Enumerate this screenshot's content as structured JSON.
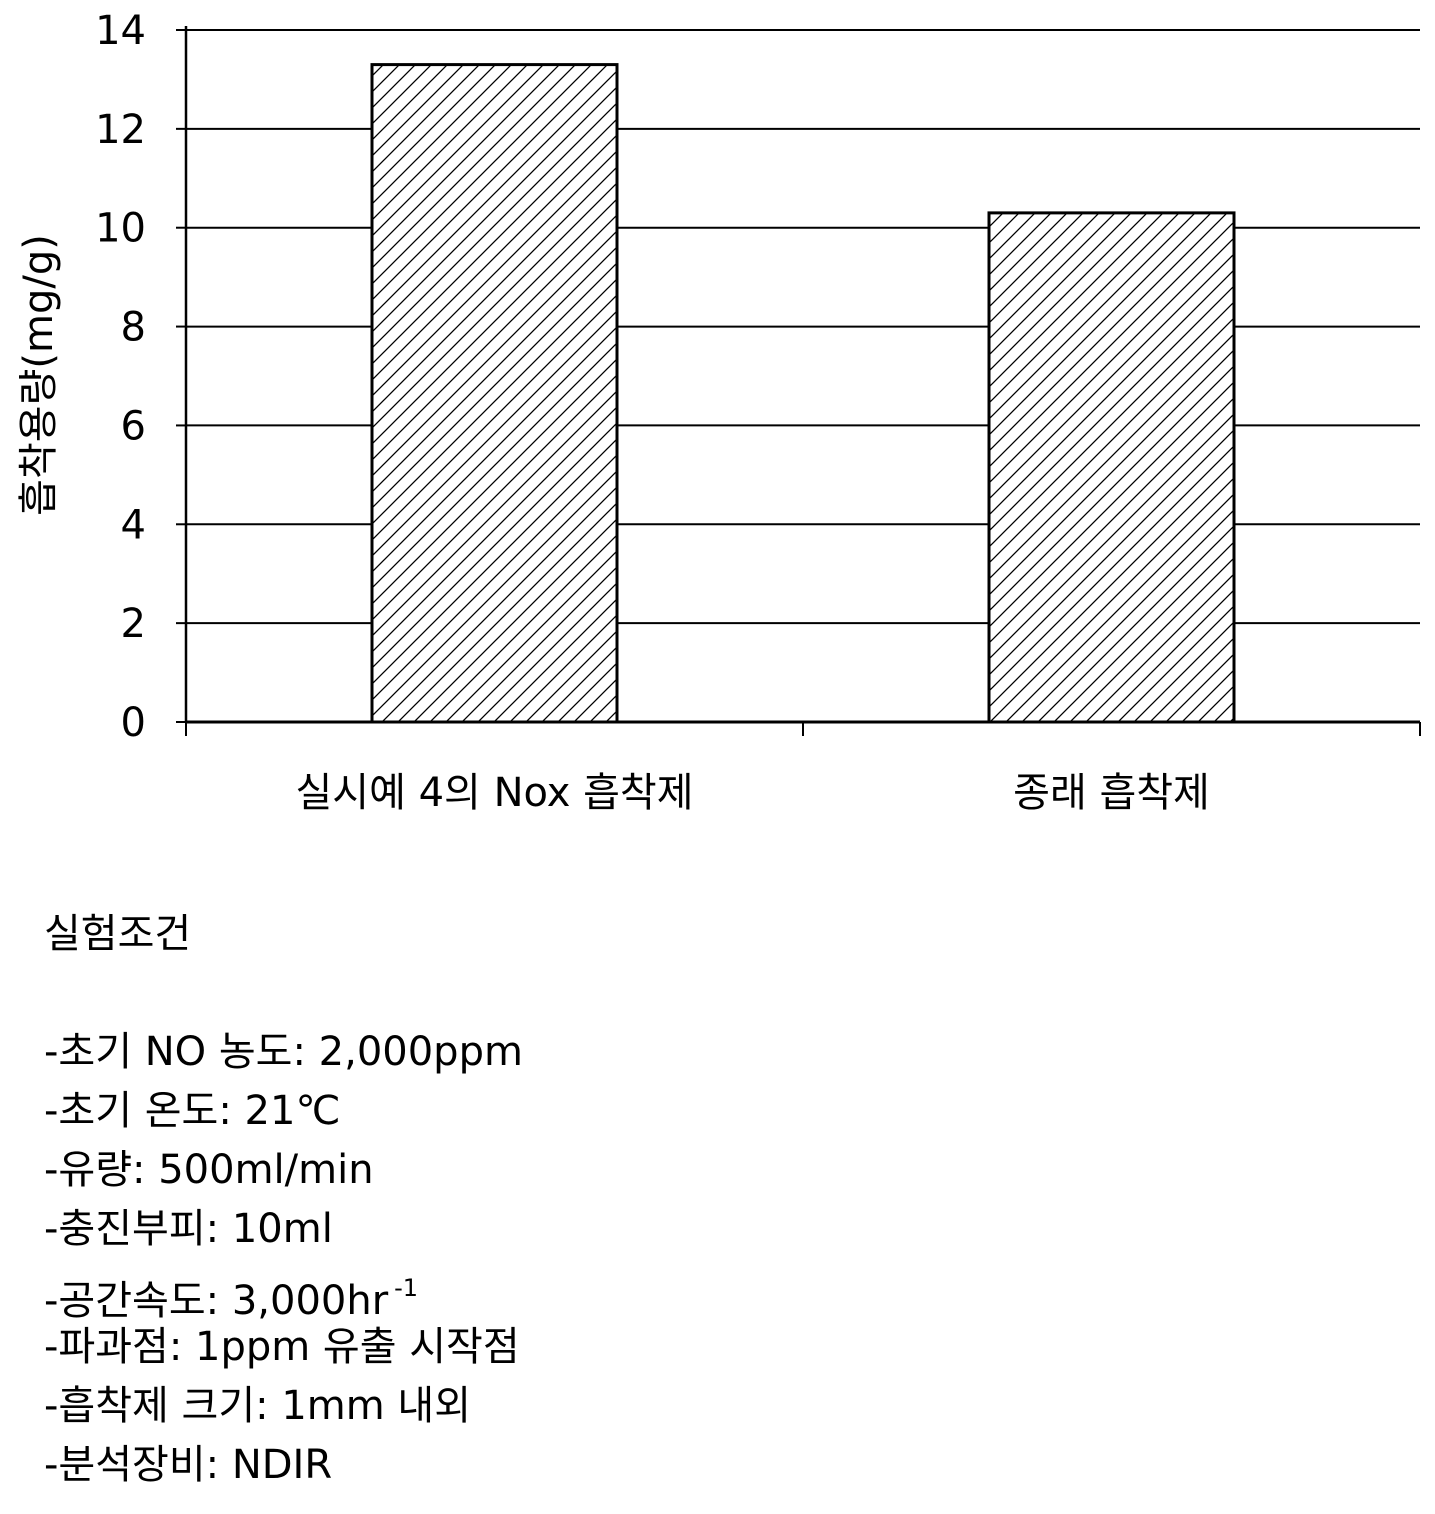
{
  "chart_data": {
    "type": "bar",
    "categories": [
      "실시예 4의 Nox 흡착제",
      "종래 흡착제"
    ],
    "values": [
      13.3,
      10.3
    ],
    "title": "",
    "xlabel": "",
    "ylabel": "흡착용량(mg/g)",
    "ylim": [
      0,
      14
    ],
    "yticks": [
      0,
      2,
      4,
      6,
      8,
      10,
      12,
      14
    ],
    "grid": true,
    "bar_fill": "diagonal-hatch"
  },
  "notes": {
    "title": "실험조건",
    "conditions": [
      {
        "text": "-초기 NO 농도: 2,000ppm",
        "sup": ""
      },
      {
        "text": "-초기 온도: 21℃",
        "sup": ""
      },
      {
        "text": "-유량: 500ml/min",
        "sup": ""
      },
      {
        "text": "-충진부피: 10ml",
        "sup": ""
      },
      {
        "text": "-공간속도: 3,000hr",
        "sup": "-1"
      },
      {
        "text": "-파과점: 1ppm 유출 시작점",
        "sup": ""
      },
      {
        "text": "-흡착제 크기: 1mm 내외",
        "sup": ""
      },
      {
        "text": "-분석장비: NDIR",
        "sup": ""
      }
    ]
  }
}
